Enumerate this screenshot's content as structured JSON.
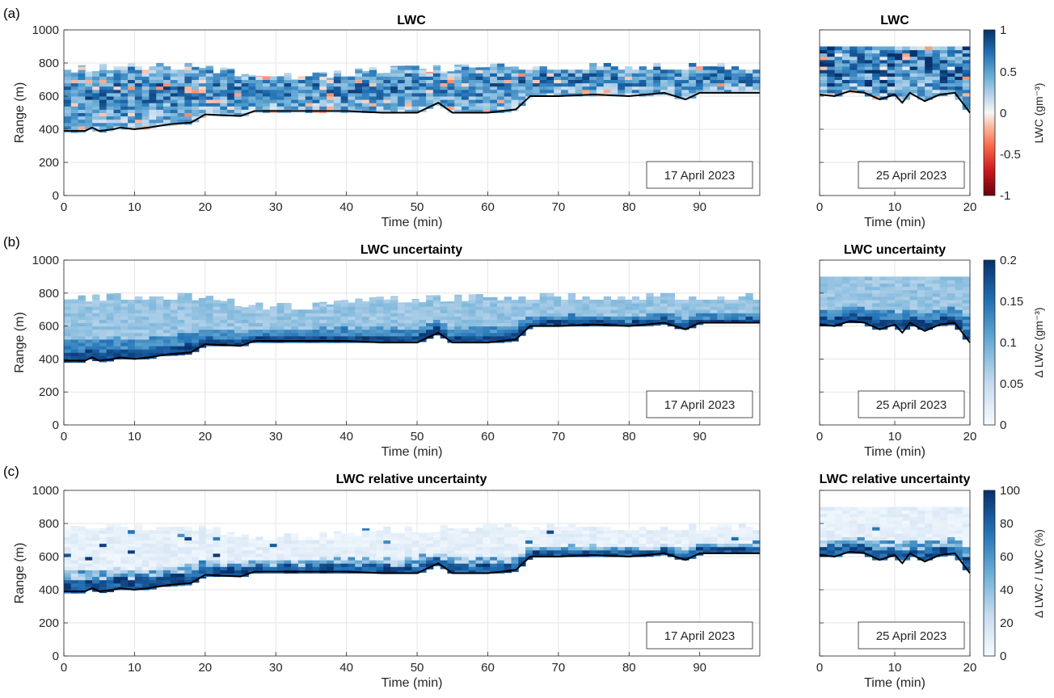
{
  "panel_labels": [
    "(a)",
    "(b)",
    "(c)"
  ],
  "row_titles": [
    "LWC",
    "LWC uncertainty",
    "LWC relative uncertainty"
  ],
  "dates": {
    "left": "17 April 2023",
    "right": "25 April 2023"
  },
  "axes": {
    "ylabel": "Range (m)",
    "xlabel": "Time (min)",
    "ylim": [
      0,
      1000
    ],
    "yticks": [
      "0",
      "200",
      "400",
      "600",
      "800",
      "1000"
    ],
    "left_xlim": [
      0,
      98.5
    ],
    "left_xticks": [
      "0",
      "10",
      "20",
      "30",
      "40",
      "50",
      "60",
      "70",
      "80",
      "90"
    ],
    "right_xlim": [
      0,
      20
    ],
    "right_xticks": [
      "0",
      "10",
      "20"
    ]
  },
  "colorbars": [
    {
      "label": "LWC (gm⁻³)",
      "ticks": [
        "1",
        "0.5",
        "0",
        "-0.5",
        "-1"
      ],
      "range": [
        -1,
        1
      ],
      "colormap": "red-white-blue diverging"
    },
    {
      "label": "Δ LWC (gm⁻³)",
      "ticks": [
        "0.2",
        "0.15",
        "0.1",
        "0.05",
        "0"
      ],
      "range": [
        0,
        0.2
      ],
      "colormap": "white-blue"
    },
    {
      "label": "Δ LWC / LWC (%)",
      "ticks": [
        "100",
        "80",
        "60",
        "40",
        "20",
        "0"
      ],
      "range": [
        0,
        100
      ],
      "colormap": "white-blue"
    }
  ],
  "colors": {
    "blue_dark": "#08306b",
    "blue_mid": "#4292c6",
    "blue_light": "#deebf7",
    "red_light": "#fcbba1",
    "red_dark": "#67000d",
    "cloud_base_line": "#000000",
    "grid": "#e6e6e6"
  },
  "chart_data": [
    {
      "type": "heatmap",
      "title": "LWC",
      "annotation": "17 April 2023",
      "xlabel": "Time (min)",
      "ylabel": "Range (m)",
      "xlim": [
        0,
        98.5
      ],
      "ylim": [
        0,
        1000
      ],
      "cloud_base_m": {
        "x": [
          0,
          3,
          4,
          5,
          7,
          8,
          10,
          12,
          15,
          18,
          20,
          25,
          27,
          30,
          35,
          40,
          45,
          50,
          53,
          55,
          60,
          64,
          66,
          70,
          75,
          80,
          85,
          88,
          90,
          95,
          98.5
        ],
        "y": [
          390,
          390,
          410,
          390,
          400,
          410,
          400,
          410,
          430,
          440,
          490,
          480,
          510,
          510,
          510,
          510,
          500,
          500,
          560,
          500,
          500,
          520,
          600,
          600,
          610,
          600,
          620,
          580,
          620,
          620,
          620
        ]
      },
      "cloud_top_m": {
        "x": [
          0,
          8,
          18,
          28,
          35,
          45,
          65,
          80,
          98.5
        ],
        "y": [
          780,
          800,
          800,
          740,
          740,
          780,
          800,
          800,
          800
        ]
      },
      "colorbar_range": [
        -1,
        1
      ]
    },
    {
      "type": "heatmap",
      "title": "LWC",
      "annotation": "25 April 2023",
      "xlabel": "Time (min)",
      "ylabel": "Range (m)",
      "xlim": [
        0,
        20
      ],
      "ylim": [
        0,
        1000
      ],
      "cloud_base_m": {
        "x": [
          0,
          2,
          4,
          6,
          8,
          10,
          11,
          12,
          14,
          16,
          18,
          19,
          20
        ],
        "y": [
          610,
          600,
          630,
          620,
          580,
          610,
          560,
          620,
          570,
          610,
          620,
          560,
          500
        ]
      },
      "cloud_top_m": {
        "x": [
          0,
          20
        ],
        "y": [
          900,
          900
        ]
      },
      "colorbar_range": [
        -1,
        1
      ]
    },
    {
      "type": "heatmap",
      "title": "LWC uncertainty",
      "annotation": "17 April 2023",
      "xlabel": "Time (min)",
      "ylabel": "Range (m)",
      "xlim": [
        0,
        98.5
      ],
      "ylim": [
        0,
        1000
      ],
      "colorbar_range": [
        0,
        0.2
      ]
    },
    {
      "type": "heatmap",
      "title": "LWC uncertainty",
      "annotation": "25 April 2023",
      "xlabel": "Time (min)",
      "ylabel": "Range (m)",
      "xlim": [
        0,
        20
      ],
      "ylim": [
        0,
        1000
      ],
      "colorbar_range": [
        0,
        0.2
      ]
    },
    {
      "type": "heatmap",
      "title": "LWC relative uncertainty",
      "annotation": "17 April 2023",
      "xlabel": "Time (min)",
      "ylabel": "Range (m)",
      "xlim": [
        0,
        98.5
      ],
      "ylim": [
        0,
        1000
      ],
      "colorbar_range": [
        0,
        100
      ]
    },
    {
      "type": "heatmap",
      "title": "LWC relative uncertainty",
      "annotation": "25 April 2023",
      "xlabel": "Time (min)",
      "ylabel": "Range (m)",
      "xlim": [
        0,
        20
      ],
      "ylim": [
        0,
        1000
      ],
      "colorbar_range": [
        0,
        100
      ]
    }
  ]
}
